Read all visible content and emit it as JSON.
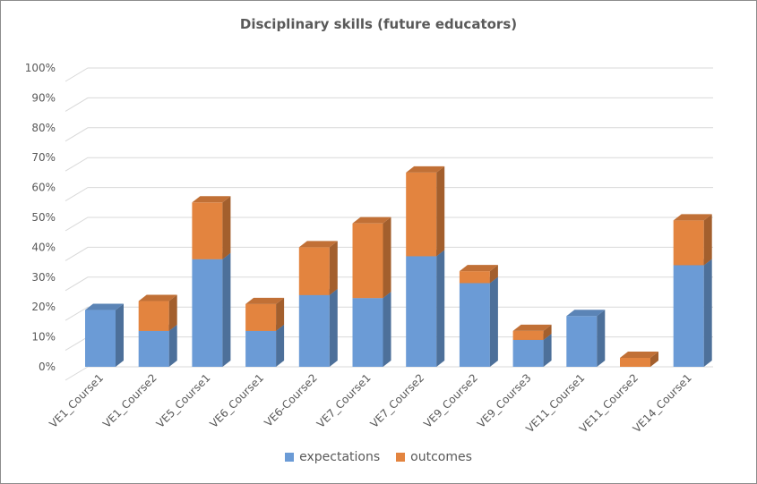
{
  "chart_data": {
    "type": "bar",
    "stacked": true,
    "style": "3d",
    "title": "Disciplinary  skills (future educators)",
    "xlabel": "",
    "ylabel": "",
    "ylim": [
      0,
      1
    ],
    "y_tick_labels": [
      "0%",
      "10%",
      "20%",
      "30%",
      "40%",
      "50%",
      "60%",
      "70%",
      "80%",
      "90%",
      "100%"
    ],
    "grid": true,
    "legend_position": "bottom",
    "categories": [
      "VE1_Course1",
      "VE1_Course2",
      "VE5_Course1",
      "VE6_Course1",
      "VE6-Course2",
      "VE7_Course1",
      "VE7_Course2",
      "VE9_Course2",
      "VE9_Course3",
      "VE11_Course1",
      "VE11_Course2",
      "VE14_Course1"
    ],
    "series": [
      {
        "name": "expectations",
        "color": "#6b9bd6",
        "values": [
          0.19,
          0.12,
          0.36,
          0.12,
          0.24,
          0.23,
          0.37,
          0.28,
          0.09,
          0.17,
          0.0,
          0.34
        ]
      },
      {
        "name": "outcomes",
        "color": "#e3843f",
        "values": [
          0.0,
          0.1,
          0.19,
          0.09,
          0.16,
          0.25,
          0.28,
          0.04,
          0.03,
          0.0,
          0.03,
          0.15
        ]
      }
    ]
  }
}
